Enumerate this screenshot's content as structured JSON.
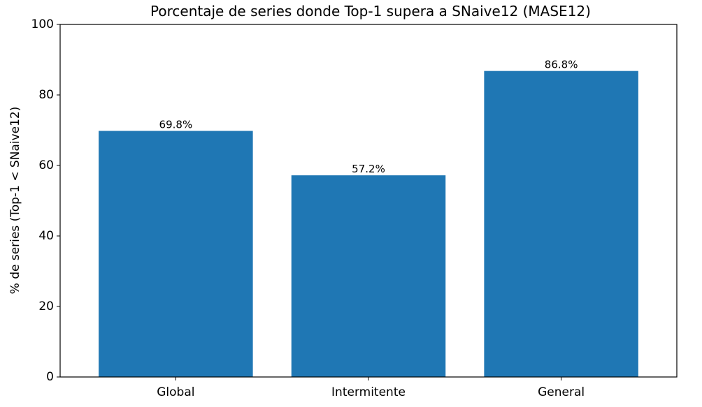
{
  "chart_data": {
    "type": "bar",
    "title": "Porcentaje de series donde Top-1 supera a SNaive12 (MASE12)",
    "xlabel": "",
    "ylabel": "% de series (Top-1 < SNaive12)",
    "categories": [
      "Global",
      "Intermitente",
      "General"
    ],
    "values": [
      69.8,
      57.2,
      86.8
    ],
    "data_labels": [
      "69.8%",
      "57.2%",
      "86.8%"
    ],
    "ylim": [
      0,
      100
    ],
    "yticks": [
      0,
      20,
      40,
      60,
      80,
      100
    ],
    "ytick_labels": [
      "0",
      "20",
      "40",
      "60",
      "80",
      "100"
    ],
    "bar_color": "#1f77b4",
    "grid": false,
    "legend": "none"
  }
}
